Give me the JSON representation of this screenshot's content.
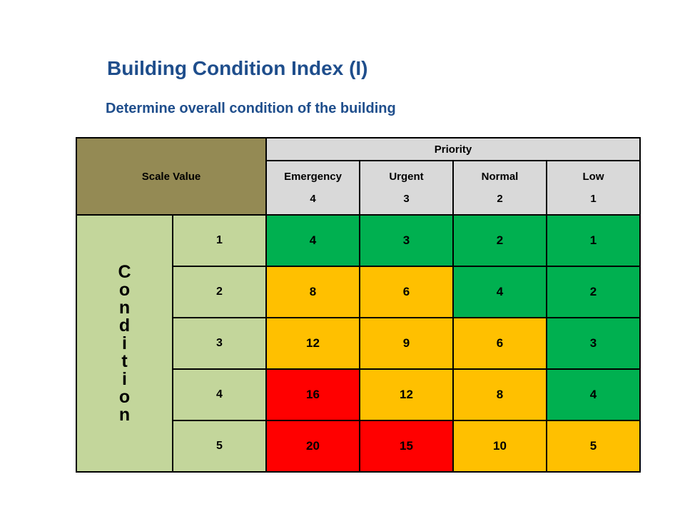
{
  "slide": {
    "title": "Building Condition Index (I)",
    "subtitle": "Determine overall condition of the building"
  },
  "colors": {
    "title_blue": "#1f4e8c",
    "olive_header": "#948a54",
    "light_green": "#c3d69b",
    "header_gray": "#d9d9d9",
    "green": "#00b050",
    "amber": "#ffc000",
    "red": "#ff0000"
  },
  "table": {
    "corner_label": "Scale Value",
    "priority_label": "Priority",
    "priority_columns": [
      {
        "label": "Emergency",
        "weight": "4"
      },
      {
        "label": "Urgent",
        "weight": "3"
      },
      {
        "label": "Normal",
        "weight": "2"
      },
      {
        "label": "Low",
        "weight": "1"
      }
    ],
    "condition_label": "Condition",
    "condition_letters": [
      "C",
      "o",
      "n",
      "d",
      "i",
      "t",
      "i",
      "o",
      "n"
    ],
    "rows": [
      {
        "scale": "1",
        "cells": [
          {
            "value": "4",
            "level": "green"
          },
          {
            "value": "3",
            "level": "green"
          },
          {
            "value": "2",
            "level": "green"
          },
          {
            "value": "1",
            "level": "green"
          }
        ]
      },
      {
        "scale": "2",
        "cells": [
          {
            "value": "8",
            "level": "amber"
          },
          {
            "value": "6",
            "level": "amber"
          },
          {
            "value": "4",
            "level": "green"
          },
          {
            "value": "2",
            "level": "green"
          }
        ]
      },
      {
        "scale": "3",
        "cells": [
          {
            "value": "12",
            "level": "amber"
          },
          {
            "value": "9",
            "level": "amber"
          },
          {
            "value": "6",
            "level": "amber"
          },
          {
            "value": "3",
            "level": "green"
          }
        ]
      },
      {
        "scale": "4",
        "cells": [
          {
            "value": "16",
            "level": "red"
          },
          {
            "value": "12",
            "level": "amber"
          },
          {
            "value": "8",
            "level": "amber"
          },
          {
            "value": "4",
            "level": "green"
          }
        ]
      },
      {
        "scale": "5",
        "cells": [
          {
            "value": "20",
            "level": "red"
          },
          {
            "value": "15",
            "level": "red"
          },
          {
            "value": "10",
            "level": "amber"
          },
          {
            "value": "5",
            "level": "amber"
          }
        ]
      }
    ]
  }
}
